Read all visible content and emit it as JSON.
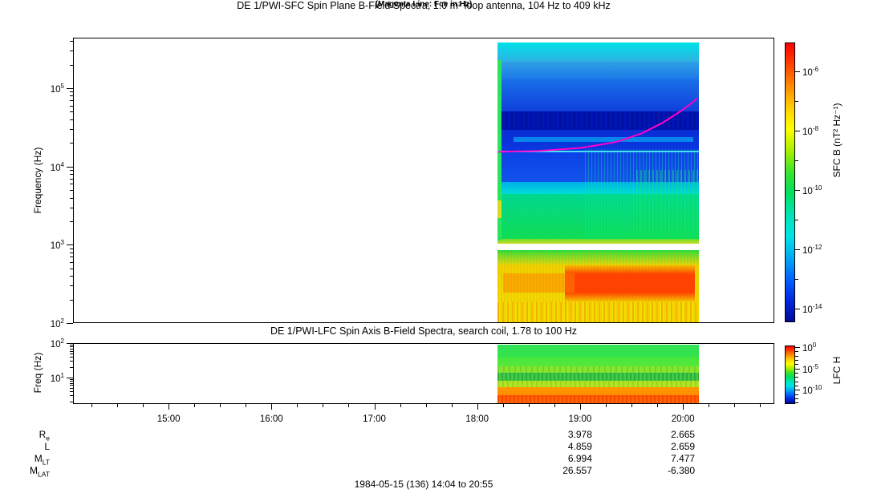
{
  "panel_sfc": {
    "title": "DE 1/PWI-SFC  Spin Plane B-Field Spectra, 1.0 m² loop antenna, 104 Hz to 409 kHz",
    "subtitle": "(Magenta Line: Fce in Hz)",
    "ylabel": "Frequency (Hz)",
    "colorbar_label": "SFC B (nT² Hz⁻¹)"
  },
  "panel_lfc": {
    "title": "DE 1/PWI-LFC  Spin Axis B-Field Spectra, search coil, 1.78 to 100 Hz",
    "ylabel": "Freq (Hz)",
    "colorbar_label": "LFC H"
  },
  "footer": "1984-05-15 (136) 14:04 to 20:55",
  "xaxis": {
    "start": "14:04",
    "end": "20:55",
    "hours": [
      15,
      16,
      17,
      18,
      19,
      20
    ],
    "hour_labels": [
      "15:00",
      "16:00",
      "17:00",
      "18:00",
      "19:00",
      "20:00"
    ],
    "minor_tick_minutes": 15
  },
  "ephemeris": {
    "column_hours": [
      19,
      20
    ],
    "rows": [
      {
        "label": "R",
        "sub": "e",
        "values": [
          "3.978",
          "2.665"
        ]
      },
      {
        "label": "L",
        "sub": "",
        "values": [
          "4.859",
          "2.659"
        ]
      },
      {
        "label": "M",
        "sub": "LT",
        "values": [
          "6.994",
          "7.477"
        ]
      },
      {
        "label": "M",
        "sub": "LAT",
        "values": [
          "26.557",
          "-6.380"
        ]
      }
    ]
  },
  "palette": [
    "#FF0000",
    "#FF4200",
    "#FF8A00",
    "#FFCE00",
    "#FFFF00",
    "#AAF000",
    "#3CE42A",
    "#00E060",
    "#00E4B4",
    "#00E4E4",
    "#00AAF4",
    "#0064FF",
    "#0028E0",
    "#000A96"
  ],
  "chart_data": [
    {
      "type": "spectrogram",
      "instrument": "SFC",
      "title": "DE 1/PWI-SFC  Spin Plane B-Field Spectra, 1.0 m² loop antenna, 104 Hz to 409 kHz",
      "note": "Magenta Line: Fce in Hz",
      "y": {
        "label": "Frequency (Hz)",
        "scale": "log",
        "min_hz": 100,
        "max_hz": 450000,
        "decade_tick_exponents": [
          5,
          4,
          3,
          2
        ]
      },
      "colorbar": {
        "label": "SFC B (nT² Hz⁻¹)",
        "tick_exponents": [
          -6,
          -8,
          -10,
          -12,
          -14
        ],
        "palette": "rainbow"
      },
      "data_start": "18:12",
      "data_end": "20:09",
      "data_start_h": 18.195,
      "data_end_h": 20.155,
      "bands": [
        {
          "f0": 380000,
          "f1": 220000,
          "c0": "#00E2E8",
          "c1": "#2FB0E2"
        },
        {
          "f0": 220000,
          "f1": 130000,
          "c0": "#2FA0E4",
          "c1": "#1C78E8"
        },
        {
          "f0": 130000,
          "f1": 51000,
          "c0": "#1870E8",
          "c1": "#1040DC"
        },
        {
          "f0": 51000,
          "f1": 29000,
          "c0": "#0016B4",
          "c1": "#0016B4"
        },
        {
          "f0": 29000,
          "f1": 15800,
          "c0": "#0A2CD4",
          "c1": "#0A38E0"
        },
        {
          "f0": 15800,
          "f1": 6300,
          "c0": "#0C40E8",
          "c1": "#1254EA"
        },
        {
          "f0": 6300,
          "f1": 4400,
          "c0": "#00B0E8",
          "c1": "#00DCD8"
        },
        {
          "f0": 4400,
          "f1": 1200,
          "c0": "#00D890",
          "c1": "#10DC55"
        },
        {
          "f0": 1200,
          "f1": 1020,
          "c0": "#70DC30",
          "c1": "#C8DC20"
        },
        {
          "f0": 860,
          "f1": 780,
          "c0": "#20E440",
          "c1": "#50E030"
        },
        {
          "f0": 780,
          "f1": 560,
          "c0": "#55E030",
          "c1": "#D8DC10"
        },
        {
          "f0": 560,
          "f1": 180,
          "c0": "#ECD400",
          "c1": "#F0DC00"
        },
        {
          "f0": 180,
          "f1": 100,
          "c0": "#F0E000",
          "c1": "#EEE200"
        }
      ],
      "overlays": [
        {
          "type": "solid",
          "t0": 18.195,
          "t1": 18.235,
          "f0": 228000,
          "f1": 1140,
          "color": "#2CE45C"
        },
        {
          "type": "solid",
          "t0": 18.195,
          "t1": 18.235,
          "f0": 3700,
          "f1": 2200,
          "color": "#D8DC20"
        },
        {
          "type": "vstripes",
          "t0": 18.24,
          "t1": 20.155,
          "f0": 51000,
          "f1": 29000,
          "color": "rgba(0,0,100,0.30)",
          "w": 2,
          "period": 6
        },
        {
          "type": "solid",
          "t0": 18.35,
          "t1": 20.1,
          "f0": 23500,
          "f1": 20800,
          "color": "rgba(0,216,255,0.50)"
        },
        {
          "type": "hline",
          "t0": 18.195,
          "t1": 20.155,
          "f": 15500,
          "h": 2,
          "color": "rgba(80,235,245,0.95)"
        },
        {
          "type": "vstripes",
          "t0": 19.05,
          "t1": 20.155,
          "f0": 16500,
          "f1": 1150,
          "color": "rgba(0,240,140,0.38)",
          "w": 1,
          "period": 4
        },
        {
          "type": "vstripes",
          "t0": 19.55,
          "t1": 20.155,
          "f0": 9000,
          "f1": 1150,
          "color": "rgba(20,230,90,0.45)",
          "w": 2,
          "period": 5
        },
        {
          "type": "blob",
          "t0": 18.85,
          "t1": 20.12,
          "f0": 540,
          "f1": 190,
          "color": "rgba(255,58,0,0.95)"
        },
        {
          "type": "solid",
          "t0": 18.25,
          "t1": 18.95,
          "f0": 430,
          "f1": 245,
          "color": "rgba(255,130,0,0.50)"
        },
        {
          "type": "vstripes",
          "t0": 18.2,
          "t1": 20.155,
          "f0": 185,
          "f1": 100,
          "color": "rgba(255,110,0,0.35)",
          "w": 2,
          "period": 6
        },
        {
          "type": "vstripes",
          "t0": 18.2,
          "t1": 20.155,
          "f0": 860,
          "f1": 100,
          "color": "rgba(255,80,0,0.10)",
          "w": 2,
          "period": 4
        }
      ],
      "fce_line_hz": [
        [
          18.21,
          15400
        ],
        [
          18.6,
          15800
        ],
        [
          19.0,
          17200
        ],
        [
          19.35,
          20500
        ],
        [
          19.6,
          26500
        ],
        [
          19.8,
          36000
        ],
        [
          19.97,
          50000
        ],
        [
          20.08,
          63500
        ],
        [
          20.13,
          73000
        ]
      ],
      "fce_color": "#FF00C8"
    },
    {
      "type": "spectrogram",
      "instrument": "LFC",
      "title": "DE 1/PWI-LFC  Spin Axis B-Field Spectra, search coil, 1.78 to 100 Hz",
      "y": {
        "label": "Freq (Hz)",
        "scale": "log",
        "min_hz": 1.78,
        "max_hz": 100,
        "decade_tick_exponents": [
          2,
          1
        ]
      },
      "colorbar": {
        "label": "LFC H",
        "tick_exponents": [
          0,
          -5,
          -10
        ],
        "palette": "rainbow"
      },
      "data_start": "18:12",
      "data_end": "20:09",
      "data_start_h": 18.195,
      "data_end_h": 20.155,
      "bands": [
        {
          "f0": 97,
          "f1": 40,
          "c0": "#30E254",
          "c1": "#34E24C"
        },
        {
          "f0": 40,
          "f1": 21,
          "c0": "#44E640",
          "c1": "#58E838"
        },
        {
          "f0": 21,
          "f1": 13.5,
          "c0": "#86E430",
          "c1": "#8AE42C"
        },
        {
          "f0": 13.5,
          "f1": 8,
          "c0": "#3CC84A",
          "c1": "#44CC42"
        },
        {
          "f0": 8,
          "f1": 5.2,
          "c0": "#AAE428",
          "c1": "#B4E424"
        },
        {
          "f0": 5.2,
          "f1": 3.0,
          "c0": "#FF9800",
          "c1": "#FF8C00"
        },
        {
          "f0": 3.0,
          "f1": 1.78,
          "c0": "#FF5A00",
          "c1": "#FF6A00"
        }
      ],
      "overlays": [
        {
          "type": "vstripes",
          "t0": 18.2,
          "t1": 20.155,
          "f0": 21,
          "f1": 13.5,
          "color": "rgba(40,180,40,0.30)",
          "w": 2,
          "period": 7
        },
        {
          "type": "vstripes",
          "t0": 18.2,
          "t1": 20.155,
          "f0": 13.5,
          "f1": 8,
          "color": "rgba(0,110,30,0.30)",
          "w": 2,
          "period": 5
        },
        {
          "type": "vstripes",
          "t0": 18.2,
          "t1": 20.155,
          "f0": 8,
          "f1": 5.2,
          "color": "rgba(120,160,0,0.25)",
          "w": 2,
          "period": 6
        },
        {
          "type": "vstripes",
          "t0": 18.2,
          "t1": 20.155,
          "f0": 3.0,
          "f1": 1.78,
          "color": "rgba(235,40,0,0.45)",
          "w": 2,
          "period": 5
        }
      ]
    }
  ]
}
